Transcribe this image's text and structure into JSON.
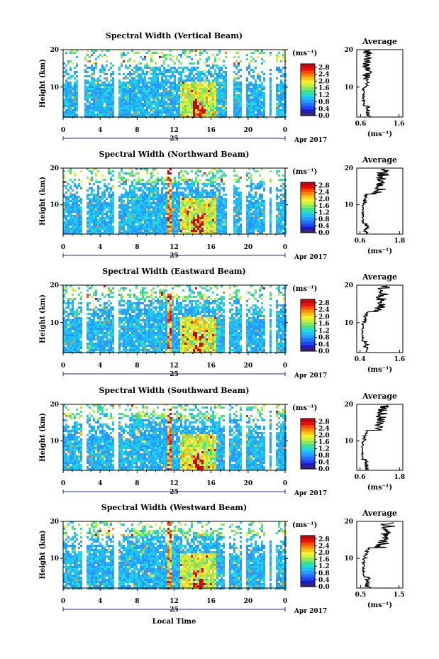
{
  "colors": {
    "colorbar": [
      "#3a2470",
      "#1b1bc8",
      "#1f46ef",
      "#2170ff",
      "#2a98ff",
      "#1cc0f7",
      "#26dcd0",
      "#43e08e",
      "#8ae85c",
      "#c8f040",
      "#f8f02c",
      "#ffc21a",
      "#ff8a10",
      "#ff4a0c",
      "#e8100c",
      "#c00a10"
    ],
    "rect_blue": "#2d4fd8",
    "line": "#000000"
  },
  "chart_data": [
    {
      "type": "heatmap",
      "title": "Spectral Width (Vertical Beam)",
      "ylabel": "Height (km)",
      "xticks": [
        "0",
        "4",
        "8",
        "12",
        "16",
        "20",
        "0"
      ],
      "date_label": "25",
      "month_label": "Apr 2017",
      "ylim": [
        2,
        20
      ],
      "yticks": [
        "20",
        "10"
      ],
      "colorbar": {
        "unit": "(ms⁻¹)",
        "ticks": [
          "2.8",
          "2.4",
          "2.0",
          "1.6",
          "1.2",
          "0.8",
          "0.4",
          "0.0"
        ],
        "range": [
          0,
          3.0
        ]
      },
      "average": {
        "title": "Average",
        "xlabel": "(ms⁻¹)",
        "xticks": [
          "0.6",
          "1.6"
        ],
        "yticks": [
          "20",
          "10"
        ],
        "xlim": [
          0.5,
          1.7
        ]
      }
    },
    {
      "type": "heatmap",
      "title": "Spectral Width (Northward Beam)",
      "ylabel": "Height (km)",
      "xticks": [
        "0",
        "4",
        "8",
        "12",
        "16",
        "20",
        "0"
      ],
      "date_label": "25",
      "month_label": "Apr 2017",
      "ylim": [
        2,
        20
      ],
      "yticks": [
        "20",
        "10"
      ],
      "colorbar": {
        "unit": "(ms⁻¹)",
        "ticks": [
          "2.8",
          "2.4",
          "2.0",
          "1.6",
          "1.2",
          "0.8",
          "0.4",
          "0.0"
        ],
        "range": [
          0,
          3.0
        ]
      },
      "average": {
        "title": "Average",
        "xlabel": "(ms⁻¹)",
        "xticks": [
          "0.6",
          "1.8"
        ],
        "yticks": [
          "20",
          "10"
        ],
        "xlim": [
          0.5,
          1.9
        ]
      }
    },
    {
      "type": "heatmap",
      "title": "Spectral Width (Eastward Beam)",
      "ylabel": "Height (km)",
      "xticks": [
        "0",
        "4",
        "8",
        "12",
        "16",
        "20",
        "0"
      ],
      "date_label": "25",
      "month_label": "Apr 2017",
      "ylim": [
        2,
        20
      ],
      "yticks": [
        "20",
        "10"
      ],
      "colorbar": {
        "unit": "(ms⁻¹)",
        "ticks": [
          "2.8",
          "2.4",
          "2.0",
          "1.6",
          "1.2",
          "0.8",
          "0.4",
          "0.0"
        ],
        "range": [
          0,
          3.0
        ]
      },
      "average": {
        "title": "Average",
        "xlabel": "(ms⁻¹)",
        "xticks": [
          "0.4",
          "1.6"
        ],
        "yticks": [
          "20",
          "10"
        ],
        "xlim": [
          0.3,
          1.7
        ]
      }
    },
    {
      "type": "heatmap",
      "title": "Spectral Width (Southward Beam)",
      "ylabel": "Height (km)",
      "xticks": [
        "0",
        "4",
        "8",
        "12",
        "16",
        "20",
        "0"
      ],
      "date_label": "25",
      "month_label": "Apr 2017",
      "ylim": [
        2,
        20
      ],
      "yticks": [
        "20",
        "10"
      ],
      "colorbar": {
        "unit": "(ms⁻¹)",
        "ticks": [
          "2.8",
          "2.4",
          "2.0",
          "1.6",
          "1.2",
          "0.8",
          "0.4",
          "0.0"
        ],
        "range": [
          0,
          3.0
        ]
      },
      "average": {
        "title": "Average",
        "xlabel": "(ms⁻¹)",
        "xticks": [
          "0.6",
          "1.8"
        ],
        "yticks": [
          "20",
          "10"
        ],
        "xlim": [
          0.5,
          1.9
        ]
      }
    },
    {
      "type": "heatmap",
      "title": "Spectral Width (Westward Beam)",
      "ylabel": "Height (km)",
      "xticks": [
        "0",
        "4",
        "8",
        "12",
        "16",
        "20",
        "0"
      ],
      "date_label": "25",
      "month_label": "Apr 2017",
      "xlabel": "Local Time",
      "ylim": [
        2,
        20
      ],
      "yticks": [
        "20",
        "10"
      ],
      "colorbar": {
        "unit": "(ms⁻¹)",
        "ticks": [
          "2.8",
          "2.4",
          "2.0",
          "1.6",
          "1.2",
          "0.8",
          "0.4",
          "0.0"
        ],
        "range": [
          0,
          3.0
        ]
      },
      "average": {
        "title": "Average",
        "xlabel": "(ms⁻¹)",
        "xticks": [
          "0.5",
          "1.5"
        ],
        "yticks": [
          "20",
          "10"
        ],
        "xlim": [
          0.4,
          1.6
        ]
      }
    }
  ]
}
